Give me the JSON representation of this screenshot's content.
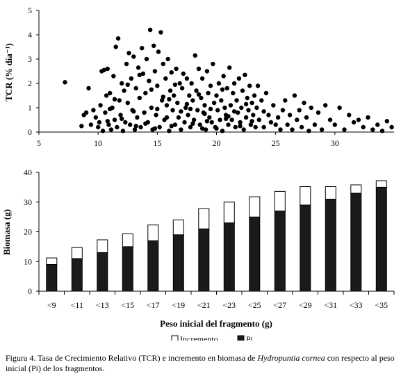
{
  "figure": {
    "caption_prefix": "Figura 4. Tasa de Crecimiento Relativo (TCR) e incremento en biomasa de ",
    "caption_species": "Hydropuntia cornea",
    "caption_suffix": " con respecto al peso inicial (Pi) de los fragmentos."
  },
  "colors": {
    "ink": "#000000",
    "increment_fill": "#ffffff",
    "pi_fill": "#1a1a1a"
  },
  "chart_data": [
    {
      "type": "scatter",
      "title": "",
      "xlabel": "",
      "ylabel": "TCR (% día⁻¹)",
      "xlim": [
        5,
        35
      ],
      "ylim": [
        0,
        5
      ],
      "xticks": [
        5,
        10,
        15,
        20,
        25,
        30
      ],
      "yticks": [
        0,
        1,
        2,
        3,
        4,
        5
      ],
      "grid": false,
      "points": [
        [
          7.2,
          2.05
        ],
        [
          8.6,
          0.25
        ],
        [
          8.8,
          0.7
        ],
        [
          9.0,
          0.8
        ],
        [
          9.2,
          1.8
        ],
        [
          9.4,
          0.3
        ],
        [
          9.6,
          0.9
        ],
        [
          9.8,
          0.6
        ],
        [
          10.0,
          0.2
        ],
        [
          10.1,
          0.4
        ],
        [
          10.2,
          1.1
        ],
        [
          10.3,
          2.5
        ],
        [
          10.4,
          0.05
        ],
        [
          10.5,
          2.55
        ],
        [
          10.6,
          0.8
        ],
        [
          10.7,
          1.5
        ],
        [
          10.8,
          2.6
        ],
        [
          10.9,
          0.3
        ],
        [
          11.0,
          1.6
        ],
        [
          11.1,
          0.1
        ],
        [
          11.2,
          1.0
        ],
        [
          11.3,
          2.3
        ],
        [
          11.4,
          0.5
        ],
        [
          11.5,
          3.5
        ],
        [
          11.6,
          0.2
        ],
        [
          11.7,
          3.85
        ],
        [
          11.8,
          1.3
        ],
        [
          11.9,
          0.7
        ],
        [
          12.0,
          2.0
        ],
        [
          12.1,
          0.05
        ],
        [
          12.2,
          1.7
        ],
        [
          12.3,
          0.4
        ],
        [
          12.4,
          2.8
        ],
        [
          12.5,
          1.2
        ],
        [
          12.6,
          3.25
        ],
        [
          12.7,
          0.3
        ],
        [
          12.8,
          2.2
        ],
        [
          12.9,
          0.9
        ],
        [
          13.0,
          3.1
        ],
        [
          13.1,
          0.1
        ],
        [
          13.2,
          1.8
        ],
        [
          13.3,
          0.6
        ],
        [
          13.4,
          2.65
        ],
        [
          13.5,
          1.4
        ],
        [
          13.6,
          0.2
        ],
        [
          13.7,
          3.45
        ],
        [
          13.8,
          2.4
        ],
        [
          13.9,
          0.8
        ],
        [
          14.0,
          1.6
        ],
        [
          14.1,
          3.0
        ],
        [
          14.2,
          0.4
        ],
        [
          14.3,
          2.1
        ],
        [
          14.4,
          4.2
        ],
        [
          14.5,
          1.0
        ],
        [
          14.6,
          0.1
        ],
        [
          14.7,
          3.55
        ],
        [
          14.8,
          2.5
        ],
        [
          14.9,
          0.7
        ],
        [
          15.0,
          1.9
        ],
        [
          15.1,
          3.3
        ],
        [
          15.2,
          0.2
        ],
        [
          15.3,
          4.1
        ],
        [
          15.4,
          1.3
        ],
        [
          15.5,
          2.8
        ],
        [
          15.6,
          0.5
        ],
        [
          15.7,
          2.2
        ],
        [
          15.8,
          1.1
        ],
        [
          15.9,
          3.0
        ],
        [
          16.0,
          0.05
        ],
        [
          16.1,
          1.7
        ],
        [
          16.2,
          2.45
        ],
        [
          16.3,
          0.9
        ],
        [
          16.4,
          1.5
        ],
        [
          16.5,
          0.3
        ],
        [
          16.6,
          2.6
        ],
        [
          16.7,
          1.2
        ],
        [
          16.8,
          0.6
        ],
        [
          16.9,
          2.0
        ],
        [
          17.0,
          0.1
        ],
        [
          17.1,
          1.8
        ],
        [
          17.2,
          2.4
        ],
        [
          17.3,
          0.4
        ],
        [
          17.4,
          1.0
        ],
        [
          17.5,
          2.2
        ],
        [
          17.6,
          0.7
        ],
        [
          17.7,
          1.5
        ],
        [
          17.8,
          0.2
        ],
        [
          17.9,
          2.0
        ],
        [
          18.0,
          1.3
        ],
        [
          18.1,
          0.5
        ],
        [
          18.2,
          3.15
        ],
        [
          18.3,
          1.7
        ],
        [
          18.4,
          0.9
        ],
        [
          18.5,
          2.6
        ],
        [
          18.6,
          0.3
        ],
        [
          18.7,
          1.4
        ],
        [
          18.8,
          2.2
        ],
        [
          18.9,
          0.8
        ],
        [
          19.0,
          1.1
        ],
        [
          19.1,
          0.1
        ],
        [
          19.2,
          2.5
        ],
        [
          19.3,
          1.6
        ],
        [
          19.4,
          0.6
        ],
        [
          19.5,
          1.9
        ],
        [
          19.6,
          0.4
        ],
        [
          19.7,
          2.8
        ],
        [
          19.8,
          1.2
        ],
        [
          19.9,
          0.2
        ],
        [
          20.0,
          1.5
        ],
        [
          20.1,
          0.9
        ],
        [
          20.2,
          2.0
        ],
        [
          20.3,
          0.5
        ],
        [
          20.4,
          1.3
        ],
        [
          20.5,
          0.05
        ],
        [
          20.6,
          2.3
        ],
        [
          20.7,
          1.0
        ],
        [
          20.8,
          0.7
        ],
        [
          20.9,
          1.8
        ],
        [
          21.0,
          0.3
        ],
        [
          21.1,
          2.65
        ],
        [
          21.2,
          1.1
        ],
        [
          21.3,
          0.5
        ],
        [
          21.4,
          1.6
        ],
        [
          21.5,
          2.0
        ],
        [
          21.6,
          0.2
        ],
        [
          21.7,
          1.3
        ],
        [
          21.8,
          0.8
        ],
        [
          21.9,
          2.2
        ],
        [
          22.0,
          0.4
        ],
        [
          22.1,
          1.0
        ],
        [
          22.2,
          1.7
        ],
        [
          22.3,
          0.1
        ],
        [
          22.4,
          2.35
        ],
        [
          22.5,
          0.6
        ],
        [
          22.6,
          1.4
        ],
        [
          22.7,
          0.9
        ],
        [
          22.8,
          1.9
        ],
        [
          22.9,
          0.3
        ],
        [
          23.0,
          1.2
        ],
        [
          23.1,
          0.7
        ],
        [
          23.2,
          1.5
        ],
        [
          23.3,
          0.2
        ],
        [
          23.4,
          1.0
        ],
        [
          23.5,
          1.9
        ],
        [
          23.6,
          0.5
        ],
        [
          23.8,
          1.3
        ],
        [
          24.0,
          0.2
        ],
        [
          24.2,
          1.6
        ],
        [
          24.4,
          0.7
        ],
        [
          24.6,
          0.4
        ],
        [
          24.8,
          1.1
        ],
        [
          25.0,
          0.3
        ],
        [
          25.2,
          0.6
        ],
        [
          25.4,
          0.1
        ],
        [
          25.6,
          0.9
        ],
        [
          25.8,
          1.3
        ],
        [
          26.0,
          0.3
        ],
        [
          26.2,
          0.7
        ],
        [
          26.4,
          0.1
        ],
        [
          26.6,
          1.5
        ],
        [
          26.8,
          0.5
        ],
        [
          27.0,
          0.9
        ],
        [
          27.2,
          0.2
        ],
        [
          27.4,
          1.2
        ],
        [
          27.6,
          0.6
        ],
        [
          27.8,
          0.05
        ],
        [
          28.0,
          1.0
        ],
        [
          28.3,
          0.3
        ],
        [
          28.6,
          0.8
        ],
        [
          28.9,
          0.1
        ],
        [
          29.2,
          1.1
        ],
        [
          29.6,
          0.5
        ],
        [
          30.0,
          0.3
        ],
        [
          30.4,
          1.0
        ],
        [
          30.8,
          0.1
        ],
        [
          31.2,
          0.7
        ],
        [
          31.6,
          0.4
        ],
        [
          32.0,
          0.5
        ],
        [
          32.4,
          0.2
        ],
        [
          32.8,
          0.6
        ],
        [
          33.2,
          0.1
        ],
        [
          33.6,
          0.3
        ],
        [
          34.0,
          0.05
        ],
        [
          34.4,
          0.45
        ],
        [
          34.8,
          0.2
        ],
        [
          11.0,
          0.95
        ],
        [
          12.0,
          0.55
        ],
        [
          13.0,
          0.85
        ],
        [
          14.0,
          0.35
        ],
        [
          15.0,
          0.95
        ],
        [
          16.0,
          1.35
        ],
        [
          17.0,
          0.85
        ],
        [
          18.0,
          0.35
        ],
        [
          19.0,
          0.75
        ],
        [
          20.0,
          0.15
        ],
        [
          21.0,
          0.65
        ],
        [
          22.0,
          0.25
        ],
        [
          23.0,
          0.45
        ],
        [
          24.0,
          0.85
        ],
        [
          12.5,
          1.95
        ],
        [
          13.5,
          2.35
        ],
        [
          14.5,
          1.75
        ],
        [
          15.5,
          1.45
        ],
        [
          16.5,
          1.95
        ],
        [
          17.5,
          1.15
        ],
        [
          18.5,
          1.55
        ],
        [
          19.5,
          0.95
        ],
        [
          20.5,
          1.75
        ],
        [
          21.5,
          0.85
        ],
        [
          22.5,
          1.15
        ],
        [
          14.8,
          0.15
        ],
        [
          16.2,
          0.25
        ],
        [
          17.8,
          0.95
        ],
        [
          19.2,
          0.45
        ],
        [
          20.8,
          0.55
        ],
        [
          11.4,
          1.35
        ],
        [
          10.8,
          0.45
        ],
        [
          13.2,
          0.25
        ],
        [
          15.8,
          0.6
        ],
        [
          18.8,
          0.15
        ]
      ]
    },
    {
      "type": "bar",
      "stacked": true,
      "title": "",
      "xlabel": "Peso inicial del fragmento (g)",
      "ylabel": "Biomasa (g)",
      "ylim": [
        0,
        40
      ],
      "yticks": [
        0,
        10,
        20,
        30,
        40
      ],
      "grid": false,
      "legend_position": "bottom",
      "categories": [
        "<9",
        "<11",
        "<13",
        "<15",
        "<17",
        "<19",
        "<21",
        "<23",
        "<25",
        "<27",
        "<29",
        "<31",
        "<33",
        "<35"
      ],
      "series": [
        {
          "name": "Pi",
          "color": "#1a1a1a",
          "values": [
            9,
            11,
            13,
            15,
            17,
            19,
            21,
            23,
            25,
            27,
            29,
            31,
            33,
            35
          ]
        },
        {
          "name": "Incremento",
          "color": "#ffffff",
          "values": [
            2.2,
            3.7,
            4.3,
            4.3,
            5.3,
            5.0,
            6.8,
            7.0,
            6.8,
            6.6,
            6.2,
            4.2,
            2.8,
            2.2
          ]
        }
      ],
      "legend_order": [
        "Incremento",
        "Pi"
      ]
    }
  ]
}
